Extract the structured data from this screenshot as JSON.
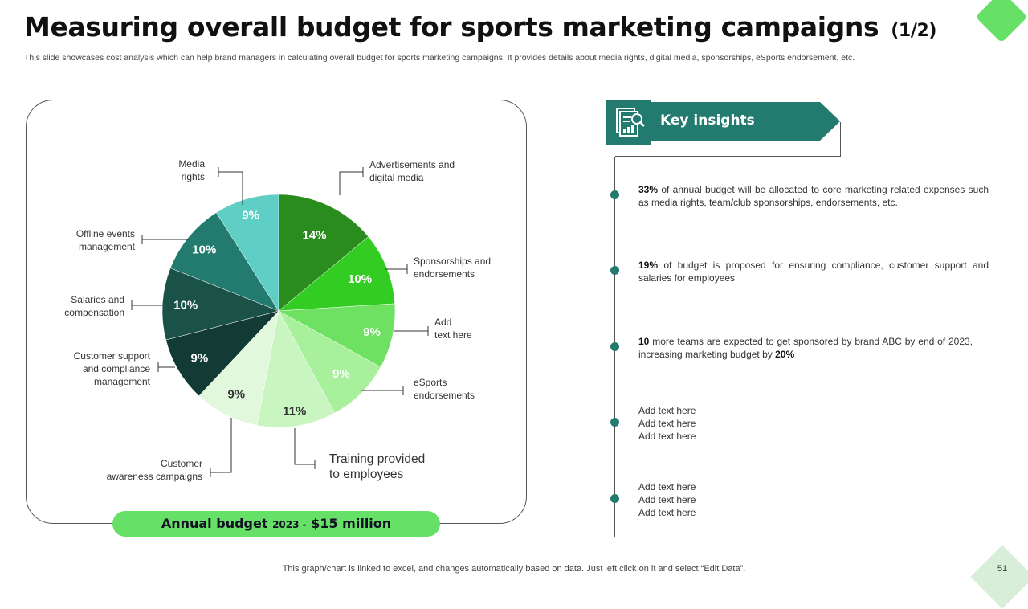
{
  "header": {
    "title": "Measuring overall budget for sports marketing campaigns",
    "pager": "(1/2)",
    "subtitle": "This slide showcases cost analysis which can help brand managers in calculating overall budget for sports marketing campaigns. It provides details about media rights, digital media, sponsorships, eSports endorsement, etc."
  },
  "chart_data": {
    "type": "pie",
    "title": "",
    "start_angle_deg": 0,
    "direction": "clockwise",
    "slices": [
      {
        "label": "Advertisements and digital media",
        "value": 14,
        "value_label": "14%",
        "color": "#2a8c1c"
      },
      {
        "label": "Sponsorships and endorsements",
        "value": 10,
        "value_label": "10%",
        "color": "#33cc22"
      },
      {
        "label": "Add text here",
        "value": 9,
        "value_label": "9%",
        "color": "#6ee062"
      },
      {
        "label": "eSports endorsements",
        "value": 9,
        "value_label": "9%",
        "color": "#a8f09c"
      },
      {
        "label": "Training provided to employees",
        "value": 11,
        "value_label": "11%",
        "color": "#c8f5c0"
      },
      {
        "label": "Customer awareness campaigns",
        "value": 9,
        "value_label": "9%",
        "color": "#e1f8dc"
      },
      {
        "label": "Customer support and compliance management",
        "value": 9,
        "value_label": "9%",
        "color": "#133b36"
      },
      {
        "label": "Salaries and compensation",
        "value": 10,
        "value_label": "10%",
        "color": "#1b5248"
      },
      {
        "label": "Offline events management",
        "value": 10,
        "value_label": "10%",
        "color": "#237a6e"
      },
      {
        "label": "Media rights",
        "value": 9,
        "value_label": "9%",
        "color": "#5fcfc6"
      }
    ],
    "outer_labels": [
      [
        "Advertisements and",
        "digital media"
      ],
      [
        "Sponsorships and",
        "endorsements"
      ],
      [
        "Add",
        "text here"
      ],
      [
        "eSports",
        "endorsements"
      ],
      [
        "Training provided",
        "to employees"
      ],
      [
        "Customer",
        "awareness campaigns"
      ],
      [
        "Customer support",
        "and compliance",
        "management"
      ],
      [
        "Salaries and",
        "compensation"
      ],
      [
        "Offline events",
        "management"
      ],
      [
        "Media",
        "rights"
      ]
    ]
  },
  "budget": {
    "label": "Annual budget",
    "year": "2023 -",
    "amount": "$15 million"
  },
  "insights": {
    "title": "Key insights",
    "items": [
      {
        "lead": "33%",
        "text": " of annual budget will be allocated to core marketing related expenses such as media rights, team/club sponsorships, endorsements, etc."
      },
      {
        "lead": "19%",
        "text": " of budget is proposed for ensuring compliance, customer support and salaries for employees"
      },
      {
        "lead": "10",
        "text": " more teams are expected to get sponsored by brand ABC by end of 2023, increasing marketing budget by ",
        "tail": "20%"
      },
      {
        "lines": [
          "Add text here",
          "Add text here",
          "Add text here"
        ]
      },
      {
        "lines": [
          "Add text here",
          "Add text here",
          "Add text here"
        ]
      }
    ]
  },
  "footer": {
    "note": "This graph/chart is linked to excel,  and changes automatically based on data. Just left click on it and select “Edit Data”.",
    "page": "51"
  },
  "colors": {
    "accent_dark": "#237a6e",
    "accent_green": "#66e066"
  }
}
